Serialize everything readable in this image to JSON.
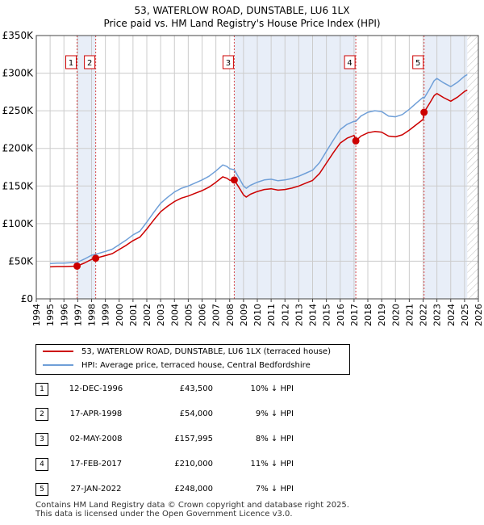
{
  "title_line1": "53, WATERLOW ROAD, DUNSTABLE, LU6 1LX",
  "title_line2": "Price paid vs. HM Land Registry's House Price Index (HPI)",
  "colors": {
    "property": "#cc0000",
    "hpi": "#6f9fd8",
    "shade": "#e8eef8",
    "grid": "#cccccc",
    "vline": "#cc0000"
  },
  "legend": {
    "property": "53, WATERLOW ROAD, DUNSTABLE, LU6 1LX (terraced house)",
    "hpi": "HPI: Average price, terraced house, Central Bedfordshire"
  },
  "sales": [
    {
      "num": "1",
      "date": "12-DEC-1996",
      "price": "£43,500",
      "hpi": "10% ↓ HPI"
    },
    {
      "num": "2",
      "date": "17-APR-1998",
      "price": "£54,000",
      "hpi": "9% ↓ HPI"
    },
    {
      "num": "3",
      "date": "02-MAY-2008",
      "price": "£157,995",
      "hpi": "8% ↓ HPI"
    },
    {
      "num": "4",
      "date": "17-FEB-2017",
      "price": "£210,000",
      "hpi": "11% ↓ HPI"
    },
    {
      "num": "5",
      "date": "27-JAN-2022",
      "price": "£248,000",
      "hpi": "7% ↓ HPI"
    }
  ],
  "footer_line1": "Contains HM Land Registry data © Crown copyright and database right 2025.",
  "footer_line2": "This data is licensed under the Open Government Licence v3.0.",
  "chart_data": {
    "type": "line",
    "title": "53, WATERLOW ROAD, DUNSTABLE, LU6 1LX",
    "subtitle": "Price paid vs. HM Land Registry's House Price Index (HPI)",
    "xlabel": "",
    "ylabel": "",
    "xlim": [
      1994,
      2026
    ],
    "ylim": [
      0,
      350000
    ],
    "yticks": [
      0,
      50000,
      100000,
      150000,
      200000,
      250000,
      300000,
      350000
    ],
    "ytick_labels": [
      "£0",
      "£50K",
      "£100K",
      "£150K",
      "£200K",
      "£250K",
      "£300K",
      "£350K"
    ],
    "xticks": [
      1994,
      1995,
      1996,
      1997,
      1998,
      1999,
      2000,
      2001,
      2002,
      2003,
      2004,
      2005,
      2006,
      2007,
      2008,
      2009,
      2010,
      2011,
      2012,
      2013,
      2014,
      2015,
      2016,
      2017,
      2018,
      2019,
      2020,
      2021,
      2022,
      2023,
      2024,
      2025,
      2026
    ],
    "xtick_labels": [
      "1994",
      "1995",
      "1996",
      "1997",
      "1998",
      "1999",
      "2000",
      "2001",
      "2002",
      "2003",
      "2004",
      "2005",
      "2006",
      "2007",
      "2008",
      "2009",
      "2010",
      "2011",
      "2012",
      "2013",
      "2014",
      "2015",
      "2016",
      "2017",
      "2018",
      "2019",
      "2020",
      "2021",
      "2022",
      "2023",
      "2024",
      "2025",
      "2026"
    ],
    "grid": true,
    "shaded_ranges": [
      [
        1996.95,
        1998.3
      ],
      [
        2008.33,
        2017.13
      ],
      [
        2022.07,
        2025.2
      ]
    ],
    "hatched_from": 2025.2,
    "series": [
      {
        "name": "HPI: Average price, terraced house, Central Bedfordshire",
        "x": [
          1995.0,
          1995.5,
          1996.0,
          1996.5,
          1996.95,
          1997.5,
          1998.0,
          1998.3,
          1999.0,
          1999.5,
          2000.0,
          2000.5,
          2001.0,
          2001.5,
          2002.0,
          2002.5,
          2003.0,
          2003.5,
          2004.0,
          2004.5,
          2005.0,
          2005.5,
          2006.0,
          2006.5,
          2007.0,
          2007.5,
          2007.8,
          2008.0,
          2008.33,
          2008.7,
          2009.0,
          2009.2,
          2009.5,
          2010.0,
          2010.5,
          2011.0,
          2011.5,
          2012.0,
          2012.5,
          2013.0,
          2013.5,
          2014.0,
          2014.5,
          2015.0,
          2015.5,
          2016.0,
          2016.5,
          2017.0,
          2017.13,
          2017.5,
          2018.0,
          2018.5,
          2019.0,
          2019.5,
          2020.0,
          2020.5,
          2021.0,
          2021.5,
          2022.0,
          2022.07,
          2022.5,
          2022.8,
          2023.0,
          2023.5,
          2024.0,
          2024.5,
          2025.0,
          2025.2
        ],
        "values": [
          47000,
          47500,
          47500,
          48000,
          48300,
          53000,
          58000,
          59300,
          63000,
          66000,
          72000,
          78000,
          85000,
          90000,
          102000,
          115000,
          127000,
          135000,
          142000,
          147000,
          150000,
          154000,
          158000,
          163000,
          170000,
          178000,
          176000,
          173000,
          171700,
          160000,
          150000,
          147000,
          151000,
          155000,
          158000,
          159000,
          157000,
          158000,
          160000,
          163000,
          167000,
          171000,
          181000,
          196000,
          211000,
          225000,
          232000,
          236000,
          236000,
          243000,
          248000,
          250000,
          249000,
          243000,
          242000,
          245000,
          252000,
          260000,
          268000,
          266700,
          280000,
          290000,
          293000,
          287000,
          282000,
          288000,
          296000,
          298000
        ]
      },
      {
        "name": "53, WATERLOW ROAD, DUNSTABLE, LU6 1LX (terraced house)",
        "x": [
          1995.0,
          1995.5,
          1996.0,
          1996.5,
          1996.95,
          1997.5,
          1998.0,
          1998.3,
          1999.0,
          1999.5,
          2000.0,
          2000.5,
          2001.0,
          2001.5,
          2002.0,
          2002.5,
          2003.0,
          2003.5,
          2004.0,
          2004.5,
          2005.0,
          2005.5,
          2006.0,
          2006.5,
          2007.0,
          2007.5,
          2007.8,
          2008.0,
          2008.33,
          2008.7,
          2009.0,
          2009.2,
          2009.5,
          2010.0,
          2010.5,
          2011.0,
          2011.5,
          2012.0,
          2012.5,
          2013.0,
          2013.5,
          2014.0,
          2014.5,
          2015.0,
          2015.5,
          2016.0,
          2016.5,
          2017.0,
          2017.13,
          2017.5,
          2018.0,
          2018.5,
          2019.0,
          2019.5,
          2020.0,
          2020.5,
          2021.0,
          2021.5,
          2022.0,
          2022.07,
          2022.5,
          2022.8,
          2023.0,
          2023.5,
          2024.0,
          2024.5,
          2025.0,
          2025.2
        ],
        "values": [
          42500,
          42900,
          42900,
          43300,
          43500,
          47800,
          52400,
          54000,
          57400,
          60100,
          65600,
          71100,
          77400,
          82000,
          92900,
          104800,
          115700,
          123000,
          129400,
          133900,
          136700,
          140300,
          143900,
          148500,
          154900,
          162200,
          160300,
          157600,
          157995,
          147300,
          138100,
          135300,
          139000,
          142700,
          145400,
          146300,
          144500,
          145400,
          147200,
          150000,
          153700,
          157400,
          166600,
          180400,
          194200,
          207100,
          213500,
          217200,
          210000,
          216300,
          220700,
          222500,
          221600,
          216300,
          215400,
          218100,
          224300,
          231400,
          238500,
          248000,
          260900,
          270100,
          272900,
          267300,
          262700,
          268200,
          275700,
          277500
        ]
      }
    ],
    "sale_points": [
      {
        "label": "1",
        "x": 1996.95,
        "y": 43500
      },
      {
        "label": "2",
        "x": 1998.3,
        "y": 54000
      },
      {
        "label": "3",
        "x": 2008.33,
        "y": 157995
      },
      {
        "label": "4",
        "x": 2017.13,
        "y": 210000
      },
      {
        "label": "5",
        "x": 2022.07,
        "y": 248000
      }
    ]
  }
}
